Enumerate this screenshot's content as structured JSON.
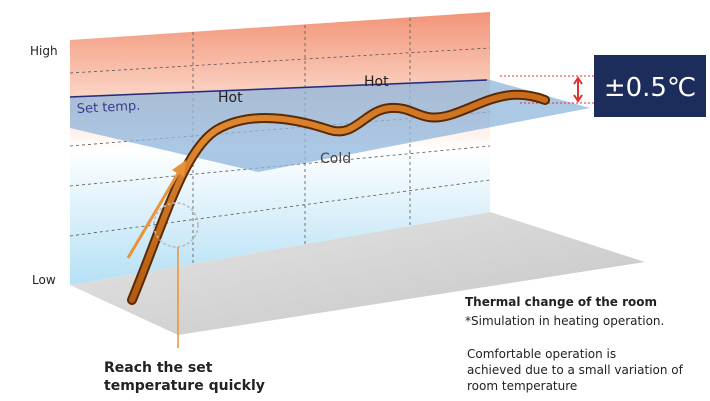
{
  "labels": {
    "high": "High",
    "low": "Low",
    "set_temp": "Set temp.",
    "hot": [
      "Hot",
      "Hot"
    ],
    "cold": "Cold",
    "badge": "±0.5℃"
  },
  "callout": [
    "Reach the set",
    "temperature quickly"
  ],
  "caption": {
    "title": "Thermal change of the room",
    "note": "*Simulation in heating operation.",
    "description": [
      "Comfortable operation is",
      "achieved due to a small variation of",
      "room temperature"
    ]
  }
}
